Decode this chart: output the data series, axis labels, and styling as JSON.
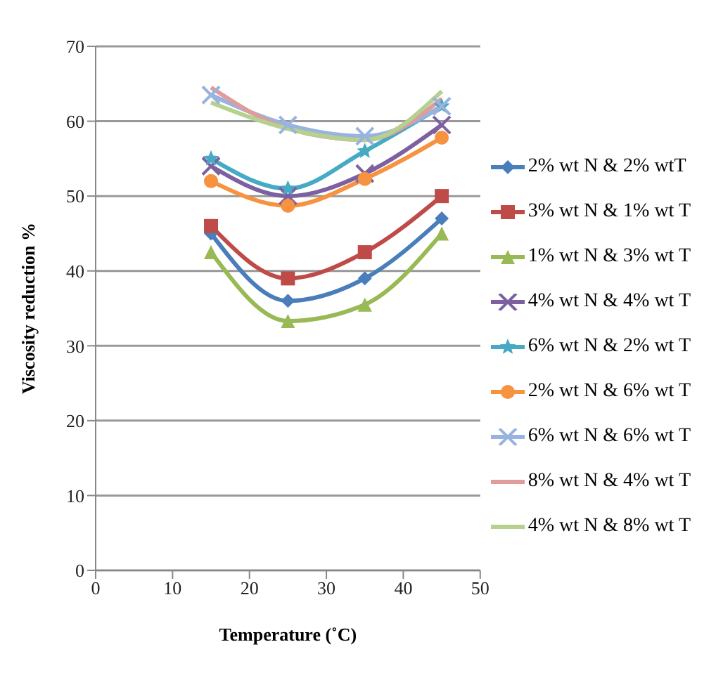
{
  "chart_data": {
    "type": "line",
    "xlabel": "Temperature (˚C)",
    "ylabel": "Viscosity reduction  %",
    "x": [
      15,
      25,
      35,
      45
    ],
    "xlim": [
      0,
      50
    ],
    "xticks": [
      0,
      10,
      20,
      30,
      40,
      50
    ],
    "ylim": [
      0,
      70
    ],
    "yticks": [
      0,
      10,
      20,
      30,
      40,
      50,
      60,
      70
    ],
    "grid": "y",
    "legend": "right",
    "series": [
      {
        "name": "2% wt N & 2% wtT",
        "color": "#4a7ebb",
        "marker": "diamond",
        "values": [
          45,
          36,
          39,
          47
        ]
      },
      {
        "name": "3% wt N & 1% wt T",
        "color": "#be4b48",
        "marker": "square",
        "values": [
          46,
          39,
          42.5,
          50
        ]
      },
      {
        "name": "1% wt N & 3% wt T",
        "color": "#98b954",
        "marker": "triangle",
        "values": [
          42.5,
          33.3,
          35.5,
          45
        ]
      },
      {
        "name": "4% wt N & 4% wt T",
        "color": "#7d60a0",
        "marker": "cross",
        "values": [
          54,
          50,
          53,
          59.5
        ]
      },
      {
        "name": "6% wt N & 2% wt T",
        "color": "#46aac5",
        "marker": "star",
        "values": [
          55,
          51,
          56,
          62
        ]
      },
      {
        "name": "2% wt N & 6% wt T",
        "color": "#f69240",
        "marker": "circle",
        "values": [
          52,
          48.7,
          52.3,
          57.8
        ]
      },
      {
        "name": "6% wt N & 6% wt T",
        "color": "#98b3e0",
        "marker": "cross",
        "values": [
          63.5,
          59.5,
          58,
          62
        ]
      },
      {
        "name": "8% wt N & 4% wt T",
        "color": "#e09b9a",
        "marker": "none",
        "values": [
          64.5,
          59,
          57.5,
          63
        ]
      },
      {
        "name": "4% wt N & 8% wt T",
        "color": "#b5d08f",
        "marker": "none",
        "values": [
          62.5,
          59,
          57.5,
          64
        ]
      }
    ]
  }
}
